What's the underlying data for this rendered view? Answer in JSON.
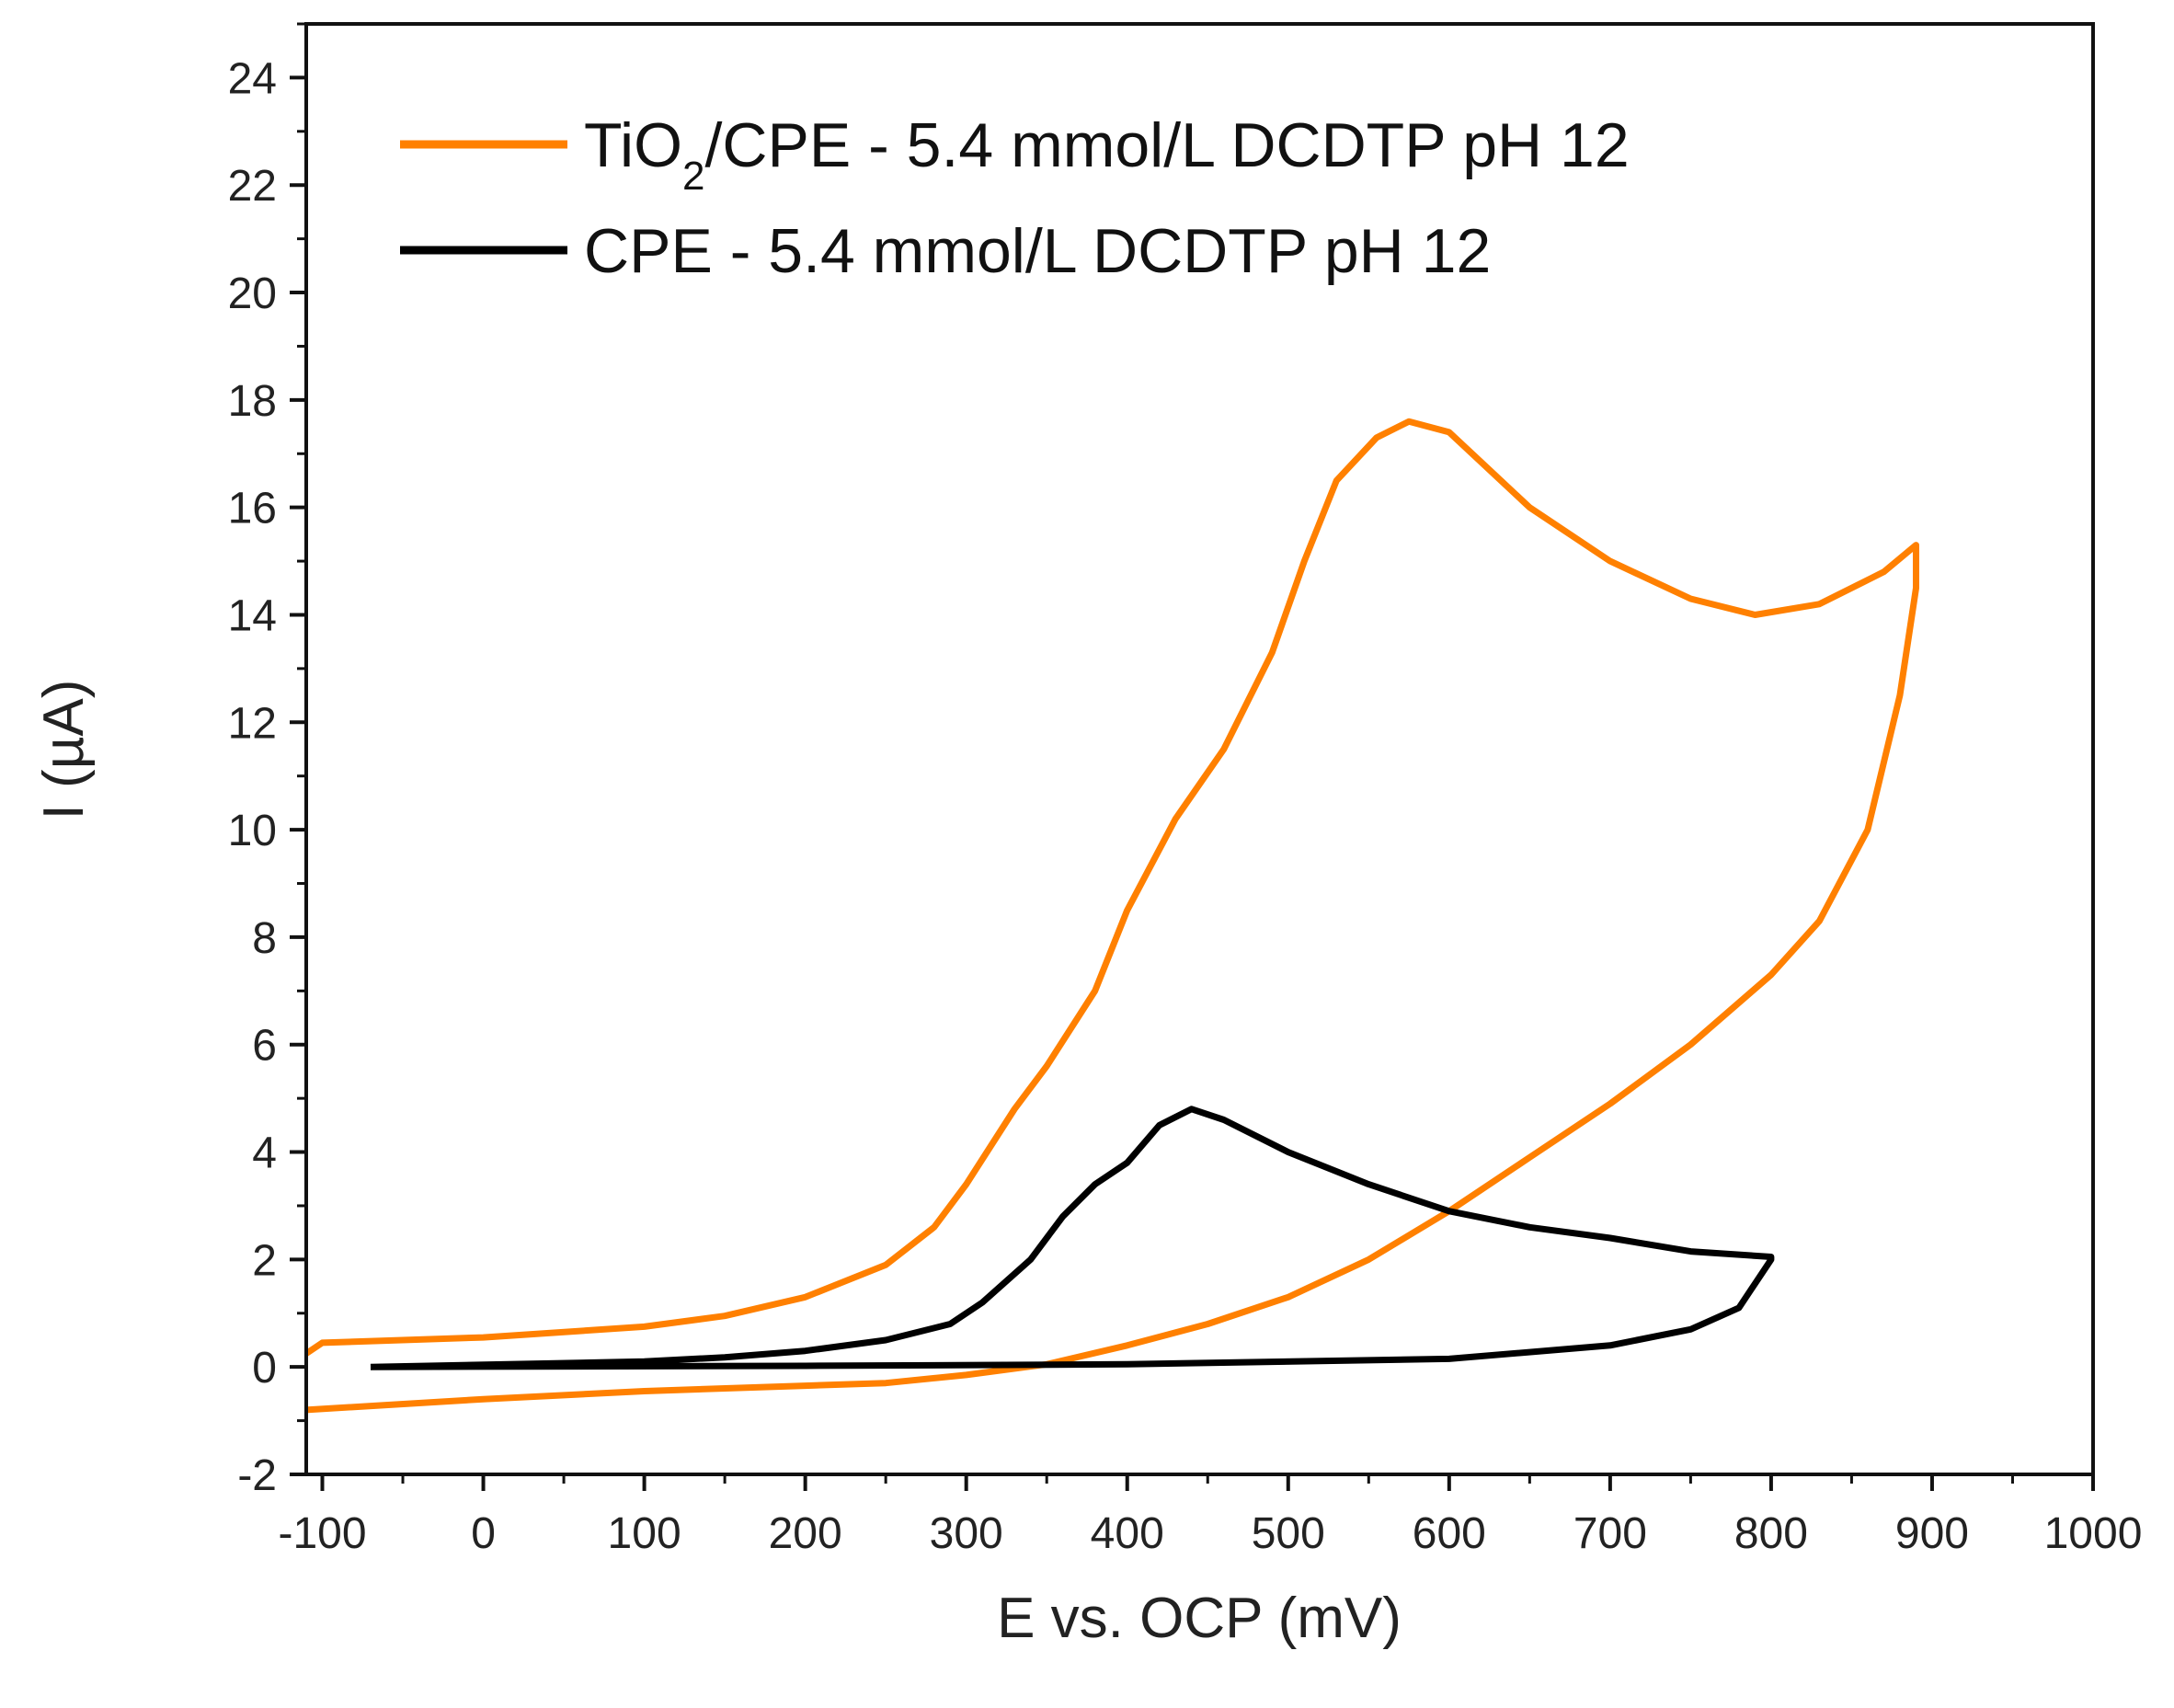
{
  "chart_data": {
    "type": "line",
    "title": "",
    "xlabel": "E vs. OCP (mV)",
    "ylabel": "I (µA)",
    "xlim": [
      -110,
      1000
    ],
    "ylim": [
      -2,
      25
    ],
    "xticks": [
      -100,
      0,
      100,
      200,
      300,
      400,
      500,
      600,
      700,
      800,
      900,
      1000
    ],
    "yticks": [
      -2,
      0,
      2,
      4,
      6,
      8,
      10,
      12,
      14,
      16,
      18,
      20,
      22,
      24
    ],
    "grid": false,
    "legend_placement": "top-left",
    "series": [
      {
        "name": "TiO2/CPE - 5.4 mmol/L DCDTP pH 12",
        "legend_main": "TiO",
        "legend_sub": "2",
        "legend_rest": "/CPE - 5.4 mmol/L DCDTP pH 12",
        "color": "#ff8000",
        "points": [
          [
            -110,
            0.25
          ],
          [
            -100,
            0.45
          ],
          [
            0,
            0.55
          ],
          [
            100,
            0.75
          ],
          [
            150,
            0.95
          ],
          [
            200,
            1.3
          ],
          [
            250,
            1.9
          ],
          [
            280,
            2.6
          ],
          [
            300,
            3.4
          ],
          [
            330,
            4.8
          ],
          [
            350,
            5.6
          ],
          [
            380,
            7.0
          ],
          [
            400,
            8.5
          ],
          [
            430,
            10.2
          ],
          [
            460,
            11.5
          ],
          [
            490,
            13.3
          ],
          [
            510,
            15.0
          ],
          [
            530,
            16.5
          ],
          [
            555,
            17.3
          ],
          [
            575,
            17.6
          ],
          [
            600,
            17.4
          ],
          [
            650,
            16.0
          ],
          [
            700,
            15.0
          ],
          [
            750,
            14.3
          ],
          [
            790,
            14.0
          ],
          [
            830,
            14.2
          ],
          [
            870,
            14.8
          ],
          [
            890,
            15.3
          ],
          [
            890,
            14.5
          ],
          [
            880,
            12.5
          ],
          [
            860,
            10.0
          ],
          [
            830,
            8.3
          ],
          [
            800,
            7.3
          ],
          [
            750,
            6.0
          ],
          [
            700,
            4.9
          ],
          [
            650,
            3.9
          ],
          [
            600,
            2.9
          ],
          [
            550,
            2.0
          ],
          [
            500,
            1.3
          ],
          [
            450,
            0.8
          ],
          [
            400,
            0.4
          ],
          [
            350,
            0.05
          ],
          [
            300,
            -0.15
          ],
          [
            250,
            -0.3
          ],
          [
            200,
            -0.35
          ],
          [
            100,
            -0.45
          ],
          [
            0,
            -0.6
          ],
          [
            -110,
            -0.8
          ]
        ]
      },
      {
        "name": "CPE - 5.4 mmol/L DCDTP pH 12",
        "color": "#000000",
        "points": [
          [
            -70,
            0.0
          ],
          [
            200,
            0.02
          ],
          [
            400,
            0.05
          ],
          [
            600,
            0.15
          ],
          [
            700,
            0.4
          ],
          [
            750,
            0.7
          ],
          [
            780,
            1.1
          ],
          [
            800,
            2.0
          ],
          [
            800,
            2.05
          ],
          [
            750,
            2.15
          ],
          [
            700,
            2.4
          ],
          [
            650,
            2.6
          ],
          [
            600,
            2.9
          ],
          [
            550,
            3.4
          ],
          [
            500,
            4.0
          ],
          [
            460,
            4.6
          ],
          [
            440,
            4.8
          ],
          [
            420,
            4.5
          ],
          [
            400,
            3.8
          ],
          [
            380,
            3.4
          ],
          [
            360,
            2.8
          ],
          [
            340,
            2.0
          ],
          [
            310,
            1.2
          ],
          [
            290,
            0.8
          ],
          [
            250,
            0.5
          ],
          [
            200,
            0.3
          ],
          [
            150,
            0.18
          ],
          [
            100,
            0.1
          ],
          [
            -70,
            0.0
          ]
        ]
      }
    ]
  }
}
